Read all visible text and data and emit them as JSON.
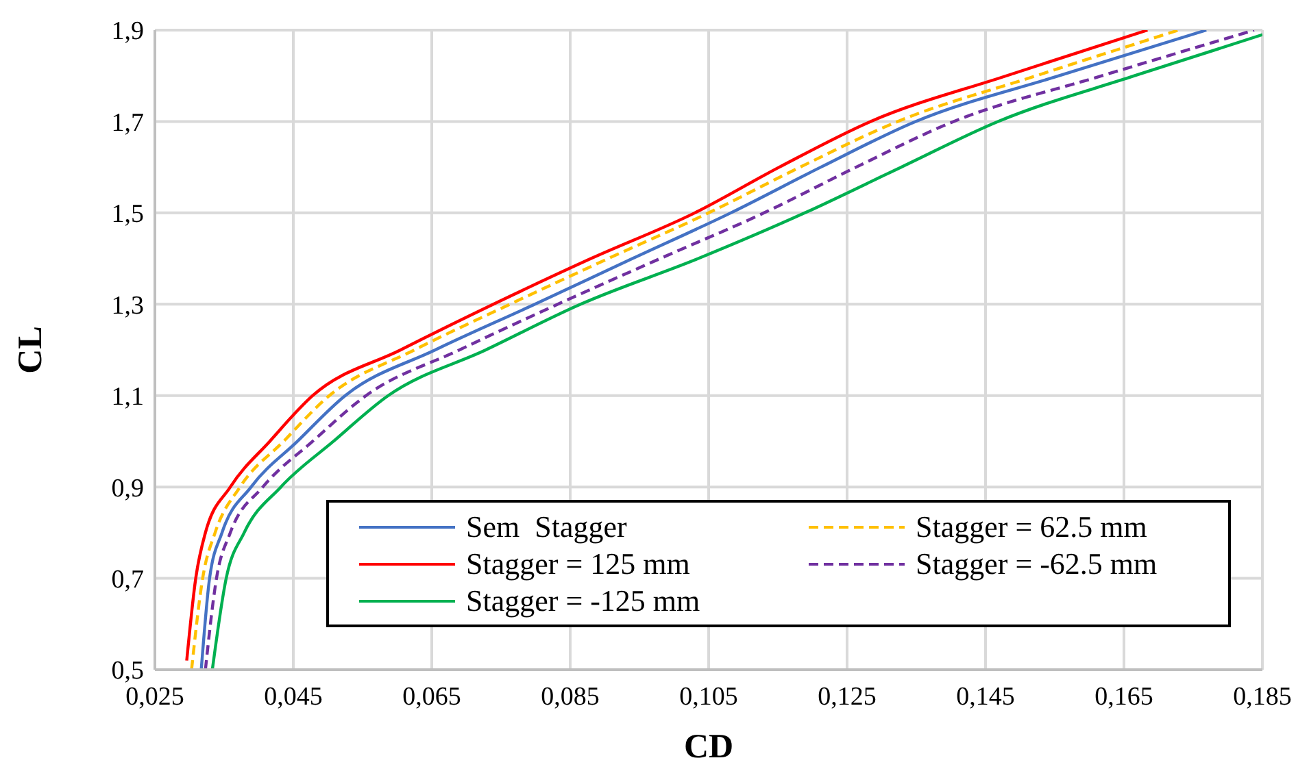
{
  "chart_data": {
    "type": "line",
    "xlabel": "CD",
    "ylabel": "CL",
    "xlim": [
      0.025,
      0.185
    ],
    "ylim": [
      0.5,
      1.9
    ],
    "xticks": [
      {
        "value": 0.025,
        "label": "0,025"
      },
      {
        "value": 0.045,
        "label": "0,045"
      },
      {
        "value": 0.065,
        "label": "0,065"
      },
      {
        "value": 0.085,
        "label": "0,085"
      },
      {
        "value": 0.105,
        "label": "0,105"
      },
      {
        "value": 0.125,
        "label": "0,125"
      },
      {
        "value": 0.145,
        "label": "0,145"
      },
      {
        "value": 0.165,
        "label": "0,165"
      },
      {
        "value": 0.185,
        "label": "0,185"
      }
    ],
    "yticks": [
      {
        "value": 0.5,
        "label": "0,5"
      },
      {
        "value": 0.7,
        "label": "0,7"
      },
      {
        "value": 0.9,
        "label": "0,9"
      },
      {
        "value": 1.1,
        "label": "1,1"
      },
      {
        "value": 1.3,
        "label": "1,3"
      },
      {
        "value": 1.5,
        "label": "1,5"
      },
      {
        "value": 1.7,
        "label": "1,7"
      },
      {
        "value": 1.9,
        "label": "1,9"
      }
    ],
    "grid": true,
    "legend": "bottom right",
    "marker": "none",
    "series": [
      {
        "name": "Sem  Stagger",
        "color": "#4472c4",
        "line_style": "solid",
        "x": [
          0.0317,
          0.0329,
          0.0347,
          0.0389,
          0.0456,
          0.0525,
          0.0655,
          0.0799,
          0.094,
          0.1082,
          0.1212,
          0.1349,
          0.1556,
          0.1769
        ],
        "values": [
          0.5,
          0.7,
          0.8,
          0.9,
          1.0,
          1.1,
          1.2,
          1.3,
          1.4,
          1.5,
          1.6,
          1.7,
          1.8,
          1.9
        ]
      },
      {
        "name": "Stagger = 62.5 mm",
        "color": "#ffc000",
        "line_style": "dashed",
        "x": [
          0.0303,
          0.0319,
          0.0337,
          0.0373,
          0.0436,
          0.0502,
          0.0625,
          0.0763,
          0.0905,
          0.105,
          0.1182,
          0.1323,
          0.1523,
          0.1729
        ],
        "values": [
          0.5,
          0.7,
          0.8,
          0.9,
          1.0,
          1.1,
          1.2,
          1.3,
          1.4,
          1.5,
          1.6,
          1.7,
          1.8,
          1.9
        ]
      },
      {
        "name": "Stagger = 125 mm",
        "color": "#ff0000",
        "line_style": "solid",
        "x": [
          0.0296,
          0.0309,
          0.0323,
          0.0359,
          0.0416,
          0.0478,
          0.0605,
          0.0739,
          0.088,
          0.103,
          0.1152,
          0.1284,
          0.148,
          0.1684
        ],
        "values": [
          0.52,
          0.7,
          0.8,
          0.9,
          1.0,
          1.1,
          1.2,
          1.3,
          1.4,
          1.5,
          1.6,
          1.7,
          1.8,
          1.9
        ]
      },
      {
        "name": "Stagger = -62.5 mm",
        "color": "#7030a0",
        "line_style": "dashed",
        "x": [
          0.0323,
          0.0339,
          0.0359,
          0.0406,
          0.0478,
          0.0555,
          0.069,
          0.0832,
          0.098,
          0.113,
          0.1263,
          0.1404,
          0.1618,
          0.1838
        ],
        "values": [
          0.5,
          0.7,
          0.8,
          0.9,
          1.0,
          1.1,
          1.2,
          1.3,
          1.4,
          1.5,
          1.6,
          1.7,
          1.8,
          1.9
        ]
      },
      {
        "name": "Stagger = -125 mm",
        "color": "#00b050",
        "line_style": "solid",
        "x": [
          0.0333,
          0.0353,
          0.0379,
          0.0432,
          0.0508,
          0.0587,
          0.0728,
          0.0865,
          0.1035,
          0.1189,
          0.1328,
          0.1468,
          0.1665,
          0.185
        ],
        "values": [
          0.5,
          0.7,
          0.8,
          0.9,
          1.0,
          1.1,
          1.2,
          1.3,
          1.4,
          1.5,
          1.6,
          1.7,
          1.8,
          1.89
        ]
      }
    ]
  }
}
